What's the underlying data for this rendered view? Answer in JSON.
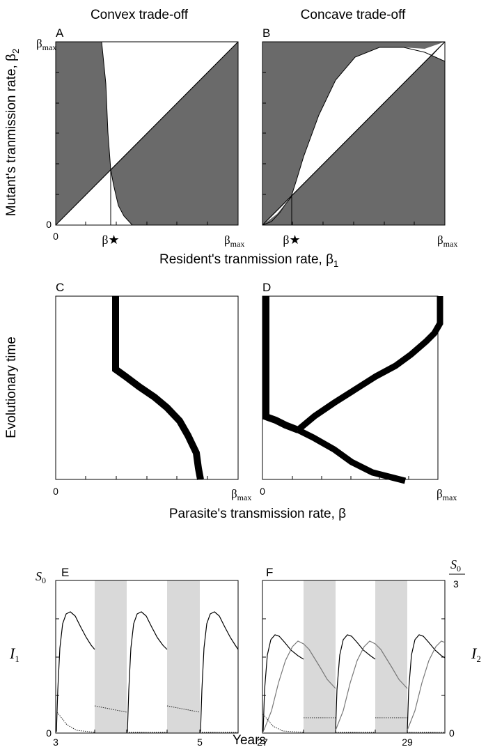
{
  "figure": {
    "col_titles": [
      "Convex trade-off",
      "Concave trade-off"
    ],
    "panel_letters": [
      "A",
      "B",
      "C",
      "D",
      "E",
      "F"
    ],
    "symbols": {
      "beta_max": "βmax",
      "beta_star": "β★",
      "s0": "S0",
      "i1": "I1",
      "i2": "I2"
    }
  },
  "chart_data": [
    {
      "panel": "A",
      "type": "pairwise-invasibility-plot",
      "title": "Convex trade-off",
      "xlabel": "Resident's tranmission rate, β1",
      "ylabel": "Mutant's tranmission rate, β2",
      "x_ticks": [
        "0",
        "β★",
        "βmax"
      ],
      "y_ticks": [
        "0",
        "βmax"
      ],
      "xlim": [
        0,
        1
      ],
      "ylim": [
        0,
        1
      ],
      "singular_point": 0.3,
      "boundary_curve": [
        [
          0.26,
          1.0
        ],
        [
          0.27,
          0.75
        ],
        [
          0.28,
          0.5
        ],
        [
          0.3,
          0.3
        ],
        [
          0.32,
          0.15
        ],
        [
          0.36,
          0.05
        ],
        [
          0.41,
          0.0
        ]
      ],
      "regions": [
        "shaded = mutant invades",
        "white = mutant fails"
      ]
    },
    {
      "panel": "B",
      "type": "pairwise-invasibility-plot",
      "title": "Concave trade-off",
      "xlabel": "Resident's tranmission rate, β1",
      "ylabel": "Mutant's tranmission rate, β2",
      "x_ticks": [
        "0",
        "β★",
        "βmax"
      ],
      "y_ticks": [
        "βmax"
      ],
      "xlim": [
        0,
        1
      ],
      "ylim": [
        0,
        1
      ],
      "singular_point": 0.16,
      "boundary_curve": [
        [
          0.0,
          0.0
        ],
        [
          0.16,
          0.15
        ],
        [
          0.3,
          0.55
        ],
        [
          0.5,
          0.95
        ],
        [
          0.7,
          1.0
        ],
        [
          0.92,
          0.96
        ],
        [
          1.0,
          0.89
        ]
      ]
    },
    {
      "panel": "C",
      "type": "evolutionary-trajectory",
      "xlabel": "Parasite's transmission rate, β",
      "ylabel": "Evolutionary time",
      "x_ticks": [
        "0",
        "βmax"
      ],
      "trajectories": [
        [
          [
            0.84,
            0.0
          ],
          [
            0.81,
            0.05
          ],
          [
            0.77,
            0.12
          ],
          [
            0.77,
            0.2
          ],
          [
            0.72,
            0.28
          ],
          [
            0.6,
            0.36
          ],
          [
            0.5,
            0.44
          ],
          [
            0.38,
            0.5
          ],
          [
            0.38,
            1.0
          ]
        ]
      ]
    },
    {
      "panel": "D",
      "type": "evolutionary-trajectory",
      "xlabel": "Parasite's transmission rate, β",
      "ylabel": "Evolutionary time",
      "x_ticks": [
        "0",
        "βmax"
      ],
      "trajectories": [
        [
          [
            0.0,
            1.0
          ],
          [
            0.0,
            0.5
          ],
          [
            0.09,
            0.47
          ],
          [
            0.22,
            0.43
          ]
        ],
        [
          [
            0.22,
            0.43
          ],
          [
            0.3,
            0.38
          ],
          [
            0.43,
            0.32
          ],
          [
            0.52,
            0.2
          ],
          [
            0.64,
            0.1
          ],
          [
            0.82,
            0.0
          ]
        ],
        [
          [
            0.22,
            0.43
          ],
          [
            0.32,
            0.53
          ],
          [
            0.47,
            0.62
          ],
          [
            0.63,
            0.7
          ],
          [
            0.8,
            0.77
          ],
          [
            0.93,
            0.85
          ],
          [
            1.0,
            0.9
          ],
          [
            1.0,
            1.0
          ]
        ]
      ]
    },
    {
      "panel": "E",
      "type": "line",
      "xlabel": "Years",
      "ylabel": "I1",
      "x_ticks": [
        "3",
        "5"
      ],
      "y_ticks": [
        "S0",
        "0"
      ],
      "xlim": [
        3,
        5.7
      ],
      "shaded_intervals": [
        [
          3.6,
          4.0
        ],
        [
          4.6,
          5.0
        ]
      ],
      "series": [
        {
          "style": "solid",
          "x": [
            3.0,
            3.1,
            3.2,
            3.3,
            3.4,
            3.5,
            3.6
          ],
          "y": [
            0.05,
            0.67,
            0.76,
            0.66,
            0.53,
            0.43,
            0.38
          ]
        },
        {
          "style": "dotted",
          "x": [
            3.6,
            4.0,
            4.6,
            5.0
          ],
          "y": [
            0.2,
            0.16,
            0.2,
            0.16
          ]
        }
      ]
    },
    {
      "panel": "F",
      "type": "line",
      "xlabel": "Years",
      "ylabel_left": "I1",
      "ylabel_right": "I2",
      "x_ticks": [
        "27",
        "29"
      ],
      "y_ticks_right": [
        "S0/3",
        "0"
      ],
      "xlim": [
        27,
        29.6
      ],
      "shaded_intervals": [
        [
          27.6,
          28.0
        ],
        [
          28.6,
          29.0
        ]
      ],
      "series": [
        {
          "name": "I1",
          "style": "solid-black",
          "x": [
            27.0,
            27.1,
            27.2,
            27.3,
            27.4,
            27.5,
            27.6
          ],
          "y": [
            0.04,
            0.56,
            0.6,
            0.55,
            0.46,
            0.4,
            0.37
          ]
        },
        {
          "name": "I2",
          "style": "solid-gray",
          "x": [
            27.0,
            27.2,
            27.35,
            27.45,
            27.6
          ],
          "y": [
            0.02,
            0.3,
            0.58,
            0.53,
            0.37
          ]
        },
        {
          "style": "dotted",
          "x": [
            27.6,
            28.0,
            28.6,
            29.0
          ],
          "y": [
            0.1,
            0.1,
            0.1,
            0.1
          ]
        }
      ]
    }
  ],
  "labels": {
    "col_title_left": "Convex trade-off",
    "col_title_right": "Concave trade-off",
    "xlabel_top": "Resident's tranmission rate, β",
    "xlabel_top_sub": "1",
    "ylabel_top": "Mutant's tranmission rate, β",
    "ylabel_top_sub": "2",
    "xlabel_mid": "Parasite's transmission rate, β",
    "ylabel_mid": "Evolutionary time",
    "xlabel_bottom": "Years"
  }
}
